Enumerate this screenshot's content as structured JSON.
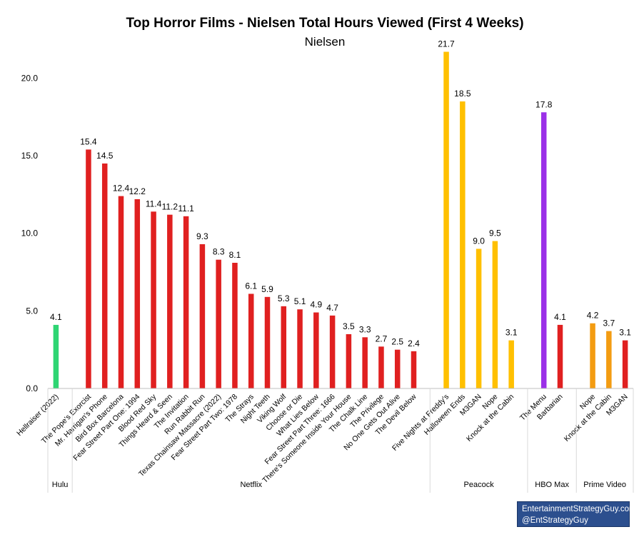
{
  "chart_data": {
    "type": "bar",
    "title": "Top Horror Films - Nielsen Total Hours Viewed (First 4 Weeks)",
    "subtitle": "Nielsen",
    "ylim": [
      0,
      22
    ],
    "yticks": [
      "0.0",
      "5.0",
      "10.0",
      "15.0",
      "20.0"
    ],
    "grid": false,
    "groups": [
      {
        "name": "Hulu",
        "bars": [
          {
            "label": "Hellraiser (2022)",
            "value": 4.1,
            "display": "4.1",
            "color": "#2ed573"
          }
        ]
      },
      {
        "name": "Netflix",
        "bars": [
          {
            "label": "The Pope's Exorcist",
            "value": 15.4,
            "display": "15.4",
            "color": "#e02020"
          },
          {
            "label": "Mr. Harrigan's Phone",
            "value": 14.5,
            "display": "14.5",
            "color": "#e02020"
          },
          {
            "label": "Bird Box Barcelona",
            "value": 12.4,
            "display": "12.4",
            "color": "#e02020"
          },
          {
            "label": "Fear Street Part One: 1994",
            "value": 12.2,
            "display": "12.2",
            "color": "#e02020"
          },
          {
            "label": "Blood Red Sky",
            "value": 11.4,
            "display": "11.4",
            "color": "#e02020"
          },
          {
            "label": "Things Heard & Seen",
            "value": 11.2,
            "display": "11.2",
            "color": "#e02020"
          },
          {
            "label": "The Invitation",
            "value": 11.1,
            "display": "11.1",
            "color": "#e02020"
          },
          {
            "label": "Run Rabbit Run",
            "value": 9.3,
            "display": "9.3",
            "color": "#e02020"
          },
          {
            "label": "Texas Chainsaw Massacre (2022)",
            "value": 8.3,
            "display": "8.3",
            "color": "#e02020"
          },
          {
            "label": "Fear Street Part Two: 1978",
            "value": 8.1,
            "display": "8.1",
            "color": "#e02020"
          },
          {
            "label": "The Strays",
            "value": 6.1,
            "display": "6.1",
            "color": "#e02020"
          },
          {
            "label": "Night Teeth",
            "value": 5.9,
            "display": "5.9",
            "color": "#e02020"
          },
          {
            "label": "Viking Wolf",
            "value": 5.3,
            "display": "5.3",
            "color": "#e02020"
          },
          {
            "label": "Choose or Die",
            "value": 5.1,
            "display": "5.1",
            "color": "#e02020"
          },
          {
            "label": "What Lies Below",
            "value": 4.9,
            "display": "4.9",
            "color": "#e02020"
          },
          {
            "label": "Fear Street Part Three: 1666",
            "value": 4.7,
            "display": "4.7",
            "color": "#e02020"
          },
          {
            "label": "There's Someone Inside Your House",
            "value": 3.5,
            "display": "3.5",
            "color": "#e02020"
          },
          {
            "label": "The Chalk Line",
            "value": 3.3,
            "display": "3.3",
            "color": "#e02020"
          },
          {
            "label": "The Privilege",
            "value": 2.7,
            "display": "2.7",
            "color": "#e02020"
          },
          {
            "label": "No One Gets Out Alive",
            "value": 2.5,
            "display": "2.5",
            "color": "#e02020"
          },
          {
            "label": "The Devil Below",
            "value": 2.4,
            "display": "2.4",
            "color": "#e02020"
          }
        ]
      },
      {
        "name": "Peacock",
        "bars": [
          {
            "label": "Five Nights at Freddy's",
            "value": 21.7,
            "display": "21.7",
            "color": "#ffc000"
          },
          {
            "label": "Halloween Ends",
            "value": 18.5,
            "display": "18.5",
            "color": "#ffc000"
          },
          {
            "label": "M3GAN",
            "value": 9.0,
            "display": "9.0",
            "color": "#ffc000"
          },
          {
            "label": "Nope",
            "value": 9.5,
            "display": "9.5",
            "color": "#ffc000"
          },
          {
            "label": "Knock at the Cabin",
            "value": 3.1,
            "display": "3.1",
            "color": "#ffc000"
          }
        ]
      },
      {
        "name": "HBO Max",
        "bars": [
          {
            "label": "The Menu",
            "value": 17.8,
            "display": "17.8",
            "color": "#9b30e8"
          },
          {
            "label": "Barbarian",
            "value": 4.1,
            "display": "4.1",
            "color": "#e02020"
          }
        ]
      },
      {
        "name": "Prime Video",
        "bars": [
          {
            "label": "Nope",
            "value": 4.2,
            "display": "4.2",
            "color": "#f39c12"
          },
          {
            "label": "Knock at the Cabin",
            "value": 3.7,
            "display": "3.7",
            "color": "#f39c12"
          },
          {
            "label": "M3GAN",
            "value": 3.1,
            "display": "3.1",
            "color": "#e02020"
          }
        ]
      }
    ]
  },
  "credit": {
    "line1": "EntertainmentStrategyGuy.com",
    "line2": "@EntStrategyGuy"
  }
}
